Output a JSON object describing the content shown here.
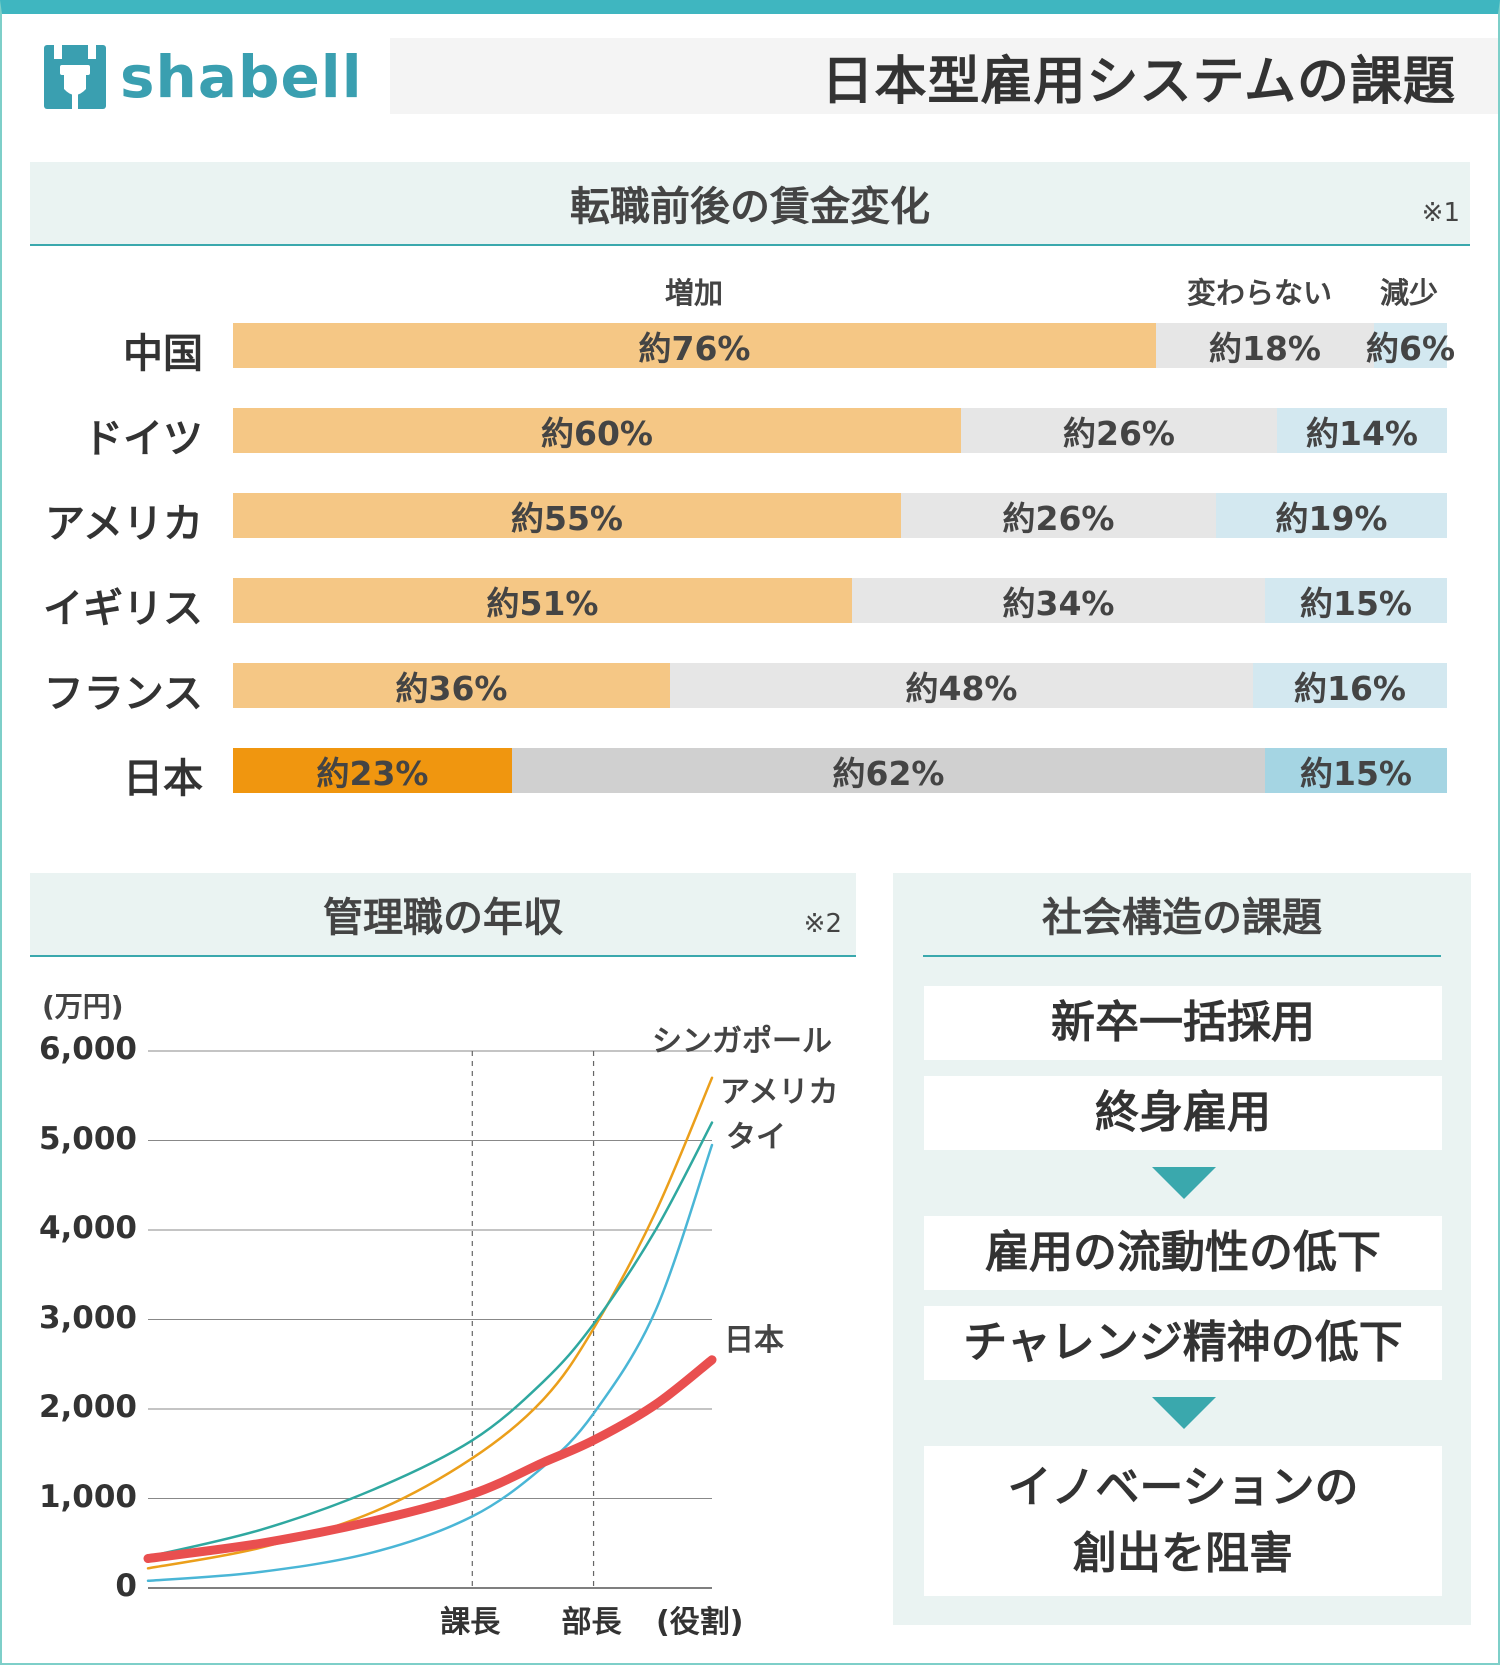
{
  "header": {
    "logo_text": "shabell",
    "title": "日本型雇用システムの課題"
  },
  "colors": {
    "brand": "#3a9fb0",
    "increase": "#f5c785",
    "unchanged": "#e6e6e6",
    "decrease": "#d3e8f0",
    "japan_increase": "#f0960f",
    "japan_unchanged": "#d0d0d0",
    "japan_decrease": "#a5d5e3",
    "singapore": "#eb9f1b",
    "america": "#2fa8a0",
    "thailand": "#4ab6d6",
    "japan_line": "#e94f4f"
  },
  "wage_section": {
    "title": "転職前後の賃金変化",
    "note": "※1"
  },
  "salary_section": {
    "title": "管理職の年収",
    "note": "※2"
  },
  "issues_section": {
    "title": "社会構造の課題",
    "items": [
      "新卒一括採用",
      "終身雇用",
      "雇用の流動性の低下",
      "チャレンジ精神の低下",
      "イノベーションの",
      "創出を阻害"
    ]
  },
  "chart_data": [
    {
      "type": "bar",
      "stacked": true,
      "orientation": "horizontal",
      "title": "転職前後の賃金変化",
      "series_names": [
        "増加",
        "変わらない",
        "減少"
      ],
      "categories": [
        "中国",
        "ドイツ",
        "アメリカ",
        "イギリス",
        "フランス",
        "日本"
      ],
      "series": [
        {
          "name": "増加",
          "values": [
            76,
            60,
            55,
            51,
            36,
            23
          ],
          "labels": [
            "約76%",
            "約60%",
            "約55%",
            "約51%",
            "約36%",
            "約23%"
          ]
        },
        {
          "name": "変わらない",
          "values": [
            18,
            26,
            26,
            34,
            48,
            62
          ],
          "labels": [
            "約18%",
            "約26%",
            "約26%",
            "約34%",
            "約48%",
            "約62%"
          ]
        },
        {
          "name": "減少",
          "values": [
            6,
            14,
            19,
            15,
            16,
            15
          ],
          "labels": [
            "約6%",
            "約14%",
            "約19%",
            "約15%",
            "約16%",
            "約15%"
          ]
        }
      ],
      "xlim": [
        0,
        100
      ]
    },
    {
      "type": "line",
      "title": "管理職の年収",
      "ylabel": "(万円)",
      "xlabel": "(役割)",
      "ylim": [
        0,
        6000
      ],
      "yticks": [
        "0",
        "1,000",
        "2,000",
        "3,000",
        "4,000",
        "5,000",
        "6,000"
      ],
      "xticks": [
        "課長",
        "部長"
      ],
      "xtick_positions": [
        0.575,
        0.79
      ],
      "series": [
        {
          "name": "シンガポール",
          "x": [
            0,
            0.2,
            0.4,
            0.575,
            0.7,
            0.79,
            0.9,
            1.0
          ],
          "y": [
            220,
            450,
            850,
            1450,
            2100,
            2900,
            4200,
            5700
          ]
        },
        {
          "name": "アメリカ",
          "x": [
            0,
            0.2,
            0.4,
            0.575,
            0.7,
            0.79,
            0.9,
            1.0
          ],
          "y": [
            350,
            650,
            1100,
            1650,
            2300,
            2950,
            4000,
            5200
          ]
        },
        {
          "name": "タイ",
          "x": [
            0,
            0.2,
            0.4,
            0.575,
            0.7,
            0.79,
            0.9,
            1.0
          ],
          "y": [
            80,
            180,
            400,
            800,
            1350,
            1950,
            3100,
            4950
          ]
        },
        {
          "name": "日本",
          "x": [
            0,
            0.2,
            0.4,
            0.575,
            0.7,
            0.79,
            0.9,
            1.0
          ],
          "y": [
            330,
            500,
            750,
            1050,
            1400,
            1650,
            2050,
            2550
          ]
        }
      ]
    }
  ]
}
